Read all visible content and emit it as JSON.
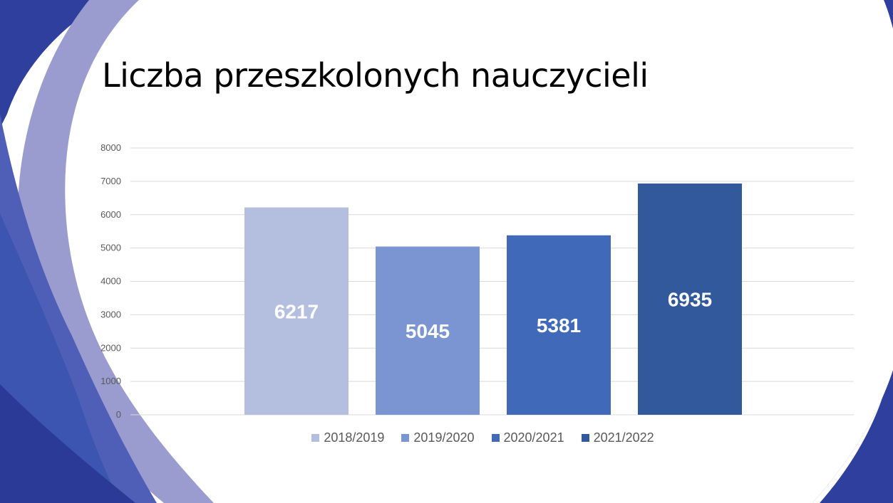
{
  "slide": {
    "title": "Liczba przeszkolonych nauczycieli"
  },
  "theme": {
    "background": "#ffffff",
    "decor_dark": "#2e3f9e",
    "decor_mid": "#4f5fb8",
    "decor_light": "#9a9cd0",
    "gridline": "#d9d9d9",
    "tick_text": "#595959"
  },
  "chart_data": {
    "type": "bar",
    "title": "",
    "xlabel": "",
    "ylabel": "",
    "ylim": [
      0,
      8000
    ],
    "yticks": [
      0,
      1000,
      2000,
      3000,
      4000,
      5000,
      6000,
      7000,
      8000
    ],
    "grid": true,
    "legend_position": "bottom",
    "data_labels": true,
    "series": [
      {
        "name": "2018/2019",
        "values": [
          6217
        ],
        "color": "#b4bfe0"
      },
      {
        "name": "2019/2020",
        "values": [
          5045
        ],
        "color": "#7b95d2"
      },
      {
        "name": "2020/2021",
        "values": [
          5381
        ],
        "color": "#4169ba"
      },
      {
        "name": "2021/2022",
        "values": [
          6935
        ],
        "color": "#32599b"
      }
    ]
  }
}
